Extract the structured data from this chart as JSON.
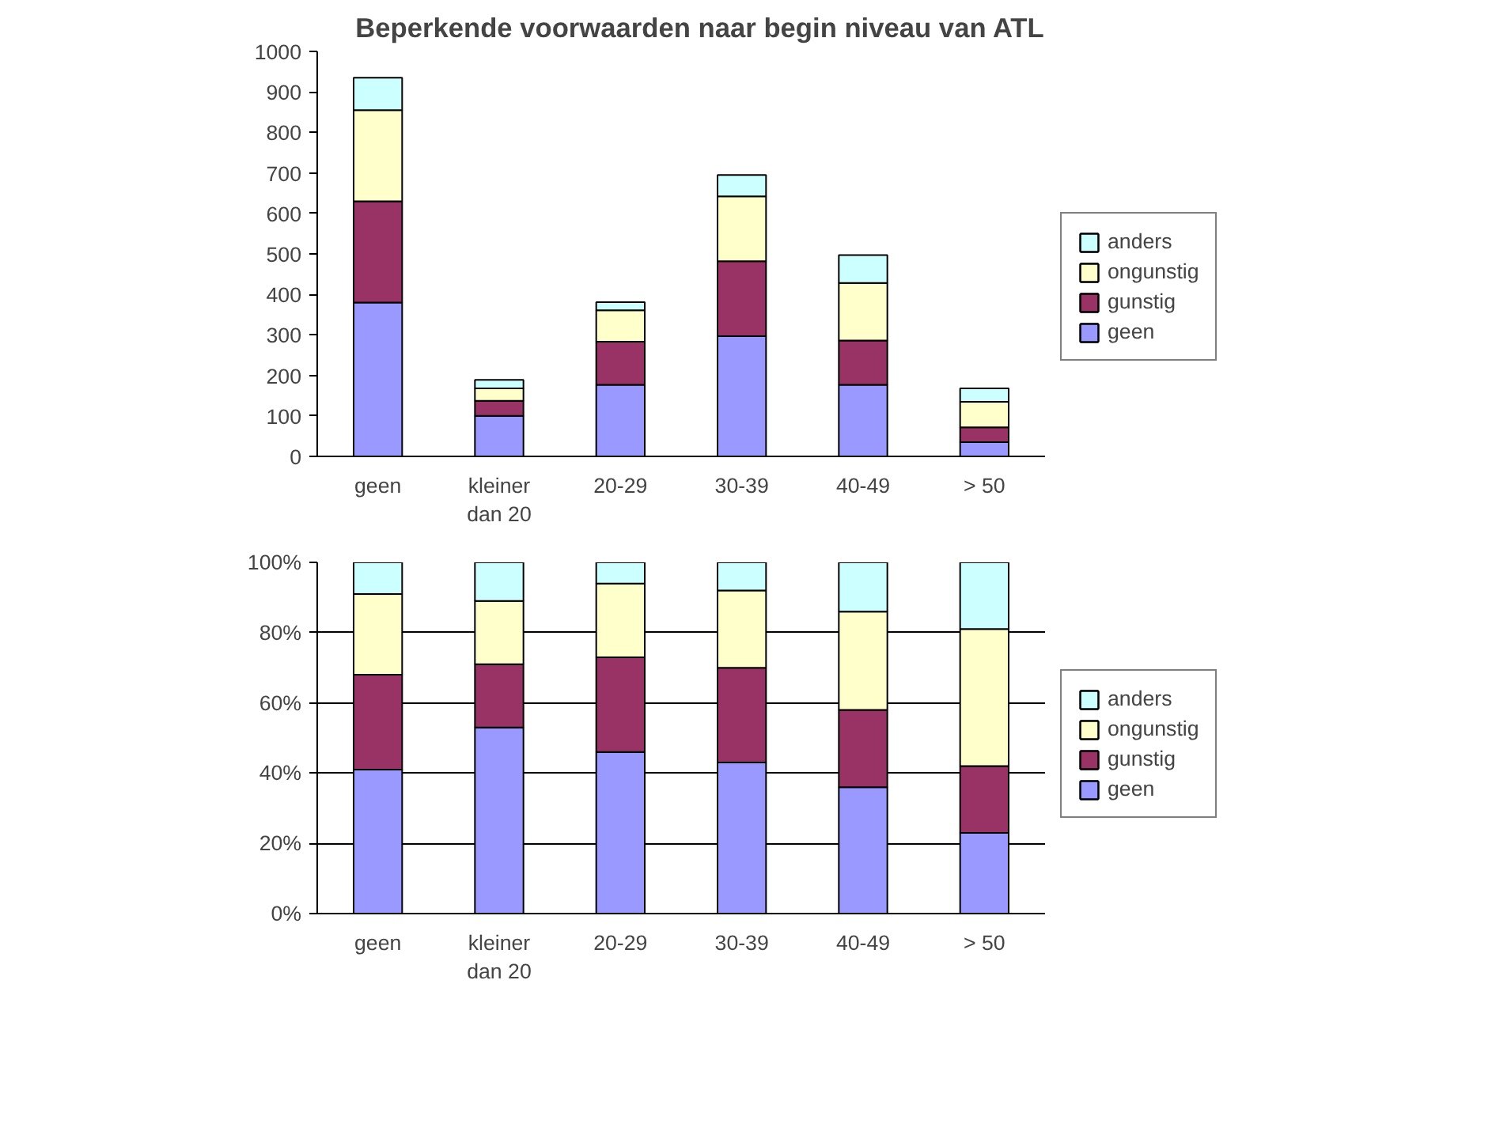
{
  "chart_data": [
    {
      "type": "bar",
      "title": "Beperkende voorwaarden naar begin niveau van ATL",
      "stacked": true,
      "legend": "right",
      "grid": false,
      "categories": [
        "geen",
        "kleiner dan 20",
        "20-29",
        "30-39",
        "40-49",
        "> 50"
      ],
      "ylim": [
        0,
        1000
      ],
      "yticks": [
        0,
        100,
        200,
        300,
        400,
        500,
        600,
        700,
        800,
        900,
        1000
      ],
      "series": [
        {
          "name": "geen",
          "color": "#9999ff",
          "values": [
            380,
            100,
            177,
            297,
            177,
            35
          ]
        },
        {
          "name": "gunstig",
          "color": "#993366",
          "values": [
            250,
            37,
            106,
            185,
            109,
            37
          ]
        },
        {
          "name": "ongunstig",
          "color": "#ffffcc",
          "values": [
            225,
            31,
            78,
            160,
            142,
            63
          ]
        },
        {
          "name": "anders",
          "color": "#ccffff",
          "values": [
            80,
            21,
            20,
            53,
            69,
            33
          ]
        }
      ]
    },
    {
      "type": "bar",
      "stacked": true,
      "legend": "right",
      "grid": "y",
      "categories": [
        "geen",
        "kleiner dan 20",
        "20-29",
        "30-39",
        "40-49",
        "> 50"
      ],
      "ylim": [
        0,
        100
      ],
      "yticks": [
        {
          "value": 0,
          "label": "0%"
        },
        {
          "value": 20,
          "label": "20%"
        },
        {
          "value": 40,
          "label": "40%"
        },
        {
          "value": 60,
          "label": "60%"
        },
        {
          "value": 80,
          "label": "80%"
        },
        {
          "value": 100,
          "label": "100%"
        }
      ],
      "series": [
        {
          "name": "geen",
          "color": "#9999ff",
          "values": [
            41,
            53,
            46,
            43,
            36,
            23
          ]
        },
        {
          "name": "gunstig",
          "color": "#993366",
          "values": [
            27,
            18,
            27,
            27,
            22,
            19
          ]
        },
        {
          "name": "ongunstig",
          "color": "#ffffcc",
          "values": [
            23,
            18,
            21,
            22,
            28,
            39
          ]
        },
        {
          "name": "anders",
          "color": "#ccffff",
          "values": [
            9,
            11,
            6,
            8,
            14,
            19
          ]
        }
      ]
    }
  ]
}
